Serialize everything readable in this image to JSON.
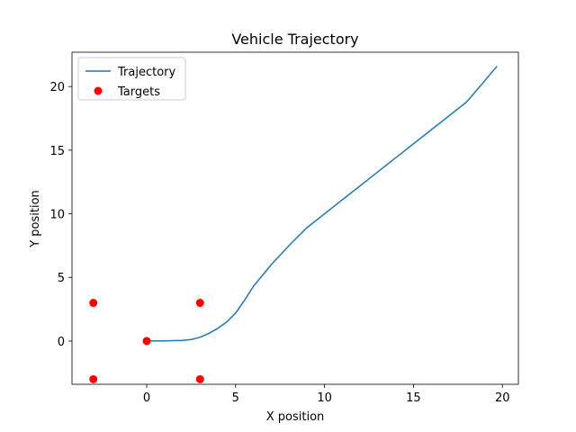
{
  "chart_data": {
    "type": "line",
    "title": "Vehicle Trajectory",
    "xlabel": "X position",
    "ylabel": "Y position",
    "xlim": [
      -4.2,
      20.9
    ],
    "ylim": [
      -3.4,
      22.7
    ],
    "xticks": [
      0,
      5,
      10,
      15,
      20
    ],
    "yticks": [
      0,
      5,
      10,
      15,
      20
    ],
    "grid": false,
    "legend_position": "top-left",
    "series": [
      {
        "name": "Trajectory",
        "kind": "line",
        "color": "#1f77b4",
        "x": [
          0,
          1,
          2,
          2.5,
          3,
          3.5,
          4,
          4.5,
          5,
          5.5,
          6,
          7,
          8,
          9,
          10,
          12,
          14,
          16,
          18,
          19.7
        ],
        "y": [
          0,
          0.01,
          0.05,
          0.12,
          0.3,
          0.6,
          1.0,
          1.5,
          2.2,
          3.2,
          4.3,
          6.0,
          7.5,
          8.9,
          10.0,
          12.2,
          14.4,
          16.6,
          18.8,
          21.6
        ]
      },
      {
        "name": "Targets",
        "kind": "scatter",
        "color": "#ff0000",
        "x": [
          0,
          -3,
          3,
          -3,
          3
        ],
        "y": [
          0,
          3,
          3,
          -3,
          -3
        ]
      }
    ]
  }
}
